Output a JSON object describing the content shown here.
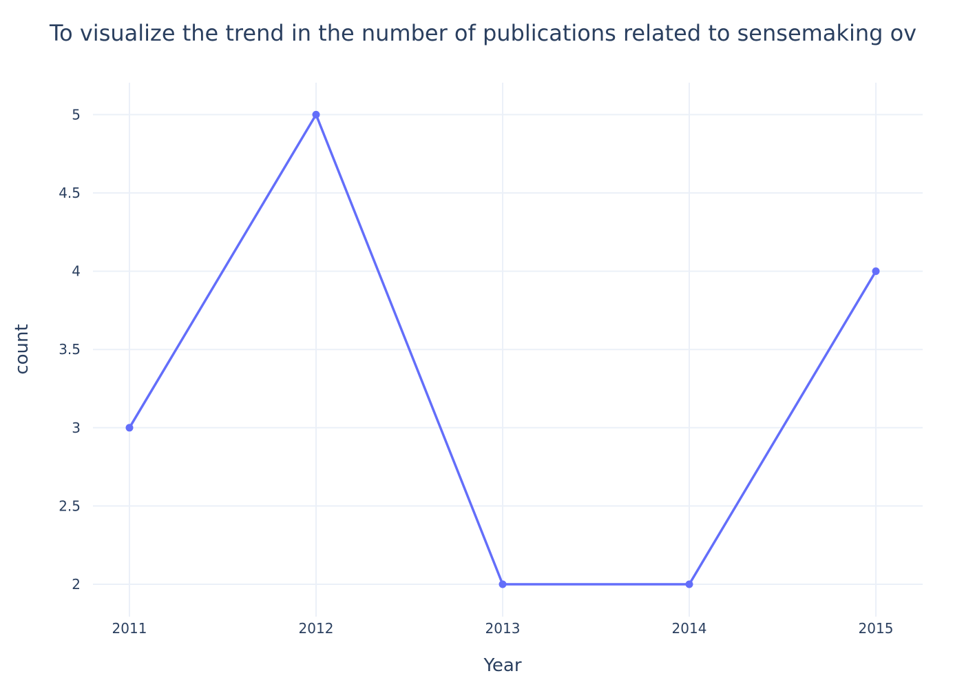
{
  "chart_data": {
    "type": "line",
    "title": "To visualize the trend in the number of publications related to sensemaking ov",
    "xlabel": "Year",
    "ylabel": "count",
    "x": [
      "2011",
      "2012",
      "2013",
      "2014",
      "2015"
    ],
    "series": [
      {
        "values": [
          3,
          5,
          2,
          2,
          4
        ]
      }
    ],
    "ylim": [
      1.8,
      5.2
    ],
    "yticks": [
      2,
      2.5,
      3,
      3.5,
      4,
      4.5,
      5
    ],
    "ytick_labels": [
      "2",
      "2.5",
      "3",
      "3.5",
      "4",
      "4.5",
      "5"
    ],
    "grid": true,
    "markers": true,
    "colors": {
      "line": "#636efa",
      "grid": "#ebf0f8",
      "text": "#2a3f5f"
    }
  }
}
